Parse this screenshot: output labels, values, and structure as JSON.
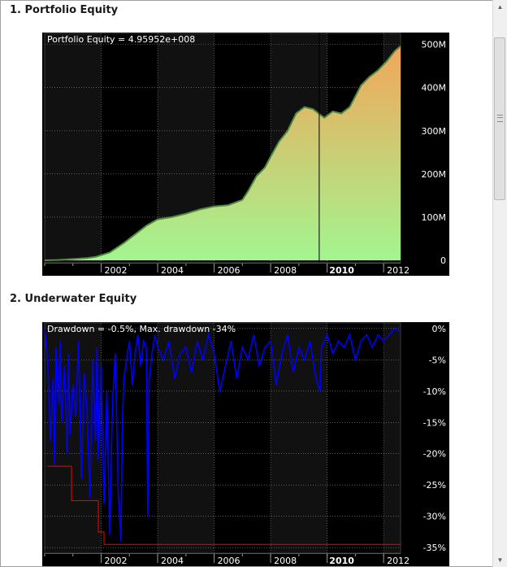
{
  "sections": [
    {
      "title": "1. Portfolio Equity"
    },
    {
      "title": "2. Underwater Equity"
    }
  ],
  "colors": {
    "background": "#000000",
    "plot_dark": "#111111",
    "plot_light": "#1c1c1c",
    "equity_fill_top": "#f2a65a",
    "equity_fill_bottom": "#a3f590",
    "equity_line": "#4f8a3f",
    "drawdown_line": "#0000ff",
    "max_drawdown_line": "#ff0000",
    "axis_text": "#ffffff"
  },
  "chart_data": [
    {
      "type": "area",
      "legend_text": "Portfolio Equity = 4.95952e+008",
      "x_tick_labels": [
        "2002",
        "2004",
        "2006",
        "2008",
        "2010",
        "2012"
      ],
      "x_bold_label": "2010",
      "y_tick_labels": [
        "0",
        "100M",
        "200M",
        "300M",
        "400M",
        "500M"
      ],
      "y_ticks": [
        0,
        100,
        200,
        300,
        400,
        500
      ],
      "ylim": [
        0,
        520
      ],
      "xlim": [
        2000.0,
        2012.6
      ],
      "x": [
        2000.0,
        2000.5,
        2001.0,
        2001.5,
        2001.8,
        2002.3,
        2002.8,
        2003.2,
        2003.6,
        2004.0,
        2004.5,
        2005.0,
        2005.5,
        2006.0,
        2006.5,
        2007.0,
        2007.2,
        2007.5,
        2007.8,
        2008.0,
        2008.3,
        2008.6,
        2008.9,
        2009.2,
        2009.5,
        2009.7,
        2009.9,
        2010.2,
        2010.5,
        2010.8,
        2011.0,
        2011.2,
        2011.5,
        2011.8,
        2012.1,
        2012.4,
        2012.6
      ],
      "values": [
        0,
        1,
        3,
        5,
        8,
        18,
        40,
        60,
        80,
        95,
        100,
        108,
        118,
        125,
        128,
        140,
        160,
        195,
        215,
        240,
        275,
        300,
        340,
        355,
        350,
        340,
        330,
        345,
        340,
        355,
        380,
        405,
        425,
        440,
        460,
        485,
        496
      ],
      "bold_vline_x": 2009.72,
      "line_color_key": "equity_line"
    },
    {
      "type": "line",
      "legend_text": "Drawdown = -0.5%, Max. drawdown -34%",
      "x_tick_labels": [
        "2002",
        "2004",
        "2006",
        "2008",
        "2010",
        "2012"
      ],
      "x_bold_label": "2010",
      "y_tick_labels": [
        "0%",
        "-5%",
        "-10%",
        "-15%",
        "-20%",
        "-25%",
        "-30%",
        "-35%"
      ],
      "y_ticks": [
        0,
        -5,
        -10,
        -15,
        -20,
        -25,
        -30,
        -35
      ],
      "ylim": [
        -35.5,
        0.5
      ],
      "xlim": [
        2000.0,
        2012.6
      ],
      "series": [
        {
          "values_x": [
            2000.0,
            2000.1,
            2000.15,
            2000.2,
            2000.3,
            2000.35,
            2000.4,
            2000.5,
            2000.55,
            2000.6,
            2000.7,
            2000.8,
            2000.85,
            2000.9,
            2001.0,
            2001.1,
            2001.2,
            2001.3,
            2001.4,
            2001.5,
            2001.6,
            2001.7,
            2001.8,
            2001.85,
            2001.9,
            2002.0,
            2002.1,
            2002.2,
            2002.3,
            2002.4,
            2002.5,
            2002.6,
            2002.7,
            2002.75,
            2002.8,
            2002.9,
            2003.0,
            2003.1,
            2003.2,
            2003.3,
            2003.4,
            2003.5,
            2003.6,
            2003.65,
            2003.7,
            2003.8,
            2003.9,
            2004.0,
            2004.2,
            2004.4,
            2004.6,
            2004.8,
            2005.0,
            2005.2,
            2005.4,
            2005.6,
            2005.8,
            2006.0,
            2006.2,
            2006.4,
            2006.6,
            2006.8,
            2007.0,
            2007.2,
            2007.4,
            2007.6,
            2007.8,
            2008.0,
            2008.2,
            2008.4,
            2008.6,
            2008.8,
            2009.0,
            2009.2,
            2009.4,
            2009.6,
            2009.75,
            2009.8,
            2010.0,
            2010.2,
            2010.4,
            2010.6,
            2010.8,
            2011.0,
            2011.2,
            2011.4,
            2011.6,
            2011.8,
            2012.0,
            2012.2,
            2012.4,
            2012.6
          ],
          "values": [
            0,
            -5,
            -10,
            -18,
            -8,
            -22,
            -3,
            -12,
            -2,
            -15,
            -6,
            -20,
            -4,
            -17,
            -9,
            -14,
            -2,
            -24,
            -7,
            -13,
            -27,
            -5,
            -18,
            -3,
            -21,
            -6,
            -28,
            -10,
            -33,
            -12,
            -4,
            -26,
            -34,
            -15,
            -8,
            -5,
            -2,
            -9,
            -4,
            -1,
            -6,
            -2,
            -3,
            -30,
            -8,
            -4,
            -1,
            -3,
            -5,
            -2,
            -8,
            -4,
            -3,
            -7,
            -2,
            -5,
            -1,
            -4,
            -10,
            -6,
            -2,
            -8,
            -3,
            -5,
            -1,
            -6,
            -3,
            -2,
            -9,
            -4,
            -1,
            -7,
            -3,
            -5,
            -2,
            -8,
            -10,
            -3,
            -1,
            -4,
            -2,
            -3,
            -1,
            -5,
            -2,
            -1,
            -3,
            -1,
            -2,
            -1,
            0,
            -0.5
          ]
        }
      ],
      "max_drawdown_steps": [
        {
          "x": [
            2000.1,
            2000.95
          ],
          "y": -22
        },
        {
          "x": [
            2000.95,
            2001.9
          ],
          "y": -27.5
        },
        {
          "x": [
            2001.9,
            2002.1
          ],
          "y": -32.5
        },
        {
          "x": [
            2002.1,
            2012.6
          ],
          "y": -34.5
        }
      ]
    }
  ],
  "scrollbar": {
    "up_arrow": "▲",
    "down_arrow": "▼"
  }
}
